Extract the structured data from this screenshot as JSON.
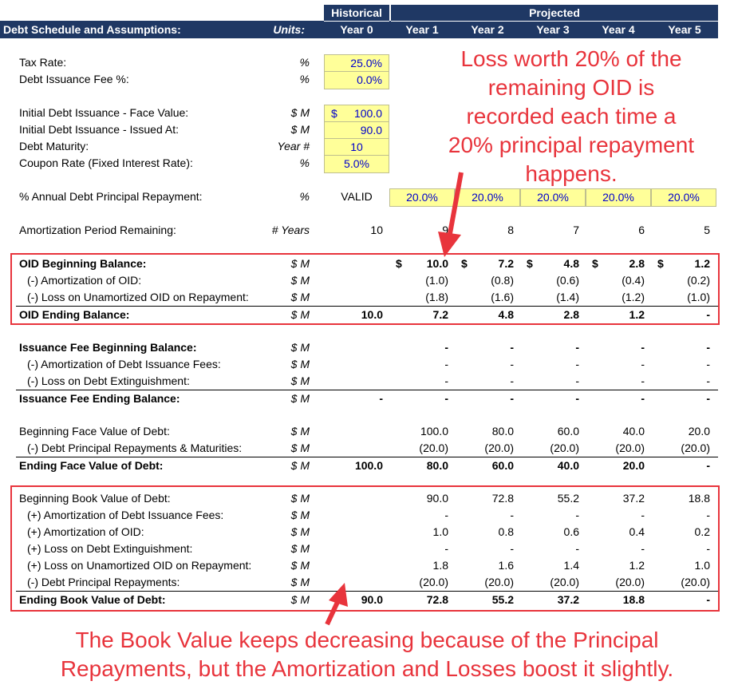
{
  "header": {
    "historical": "Historical",
    "projected": "Projected",
    "title": "Debt Schedule and Assumptions:",
    "units": "Units:",
    "years": [
      "Year 0",
      "Year 1",
      "Year 2",
      "Year 3",
      "Year 4",
      "Year 5"
    ]
  },
  "assumptions": {
    "tax_rate": {
      "label": "Tax Rate:",
      "unit": "%",
      "value": "25.0%"
    },
    "fee_pct": {
      "label": "Debt Issuance Fee %:",
      "unit": "%",
      "value": "0.0%"
    },
    "face_value": {
      "label": "Initial Debt Issuance - Face Value:",
      "unit": "$ M",
      "currency": "$",
      "value": "100.0"
    },
    "issued_at": {
      "label": "Initial Debt Issuance - Issued At:",
      "unit": "$ M",
      "value": "90.0"
    },
    "maturity": {
      "label": "Debt Maturity:",
      "unit": "Year #",
      "value": "10"
    },
    "coupon": {
      "label": "Coupon Rate (Fixed Interest Rate):",
      "unit": "%",
      "value": "5.0%"
    },
    "repayment": {
      "label": "% Annual Debt Principal Repayment:",
      "unit": "%",
      "status": "VALID",
      "values": [
        "20.0%",
        "20.0%",
        "20.0%",
        "20.0%",
        "20.0%"
      ]
    },
    "amort_period": {
      "label": "Amortization Period Remaining:",
      "unit": "# Years",
      "values": [
        "10",
        "9",
        "8",
        "7",
        "6",
        "5"
      ]
    }
  },
  "oid": {
    "begin": {
      "label": "OID Beginning Balance:",
      "unit": "$ M",
      "currency": "$",
      "values": [
        "10.0",
        "7.2",
        "4.8",
        "2.8",
        "1.2"
      ]
    },
    "amort": {
      "label": "(-) Amortization of OID:",
      "unit": "$ M",
      "values": [
        "(1.0)",
        "(0.8)",
        "(0.6)",
        "(0.4)",
        "(0.2)"
      ]
    },
    "loss": {
      "label": "(-) Loss on Unamortized OID on Repayment:",
      "unit": "$ M",
      "values": [
        "(1.8)",
        "(1.6)",
        "(1.4)",
        "(1.2)",
        "(1.0)"
      ]
    },
    "end": {
      "label": "OID Ending Balance:",
      "unit": "$ M",
      "values": [
        "10.0",
        "7.2",
        "4.8",
        "2.8",
        "1.2",
        "-"
      ]
    }
  },
  "fee": {
    "begin": {
      "label": "Issuance Fee Beginning Balance:",
      "unit": "$ M",
      "values": [
        "-",
        "-",
        "-",
        "-",
        "-"
      ]
    },
    "amort": {
      "label": "(-) Amortization of Debt Issuance Fees:",
      "unit": "$ M",
      "values": [
        "-",
        "-",
        "-",
        "-",
        "-"
      ]
    },
    "loss": {
      "label": "(-) Loss on Debt Extinguishment:",
      "unit": "$ M",
      "values": [
        "-",
        "-",
        "-",
        "-",
        "-"
      ]
    },
    "end": {
      "label": "Issuance Fee Ending Balance:",
      "unit": "$ M",
      "values": [
        "-",
        "-",
        "-",
        "-",
        "-",
        "-"
      ]
    }
  },
  "face": {
    "begin": {
      "label": "Beginning Face Value of Debt:",
      "unit": "$ M",
      "values": [
        "100.0",
        "80.0",
        "60.0",
        "40.0",
        "20.0"
      ]
    },
    "repay": {
      "label": "(-) Debt Principal Repayments & Maturities:",
      "unit": "$ M",
      "values": [
        "(20.0)",
        "(20.0)",
        "(20.0)",
        "(20.0)",
        "(20.0)"
      ]
    },
    "end": {
      "label": "Ending Face Value of Debt:",
      "unit": "$ M",
      "values": [
        "100.0",
        "80.0",
        "60.0",
        "40.0",
        "20.0",
        "-"
      ]
    }
  },
  "book": {
    "begin": {
      "label": "Beginning Book Value of Debt:",
      "unit": "$ M",
      "values": [
        "90.0",
        "72.8",
        "55.2",
        "37.2",
        "18.8"
      ]
    },
    "fee_amort": {
      "label": "(+) Amortization of Debt Issuance Fees:",
      "unit": "$ M",
      "values": [
        "-",
        "-",
        "-",
        "-",
        "-"
      ]
    },
    "oid_amort": {
      "label": "(+) Amortization of OID:",
      "unit": "$ M",
      "values": [
        "1.0",
        "0.8",
        "0.6",
        "0.4",
        "0.2"
      ]
    },
    "ext_loss": {
      "label": "(+) Loss on Debt Extinguishment:",
      "unit": "$ M",
      "values": [
        "-",
        "-",
        "-",
        "-",
        "-"
      ]
    },
    "oid_loss": {
      "label": "(+) Loss on Unamortized OID on Repayment:",
      "unit": "$ M",
      "values": [
        "1.8",
        "1.6",
        "1.4",
        "1.2",
        "1.0"
      ]
    },
    "repay": {
      "label": "(-) Debt Principal Repayments:",
      "unit": "$ M",
      "values": [
        "(20.0)",
        "(20.0)",
        "(20.0)",
        "(20.0)",
        "(20.0)"
      ]
    },
    "end": {
      "label": "Ending Book Value of Debt:",
      "unit": "$ M",
      "values": [
        "90.0",
        "72.8",
        "55.2",
        "37.2",
        "18.8",
        "-"
      ]
    }
  },
  "annotations": {
    "top": [
      "Loss worth 20% of the",
      "remaining OID is",
      "recorded each time a",
      "20% principal repayment",
      "happens."
    ],
    "bottom": [
      "The Book Value keeps decreasing because of the Principal",
      "Repayments, but the Amortization and Losses boost it slightly."
    ],
    "color": "#e8343c"
  },
  "colors": {
    "header_bg": "#1f3864",
    "input_bg": "#ffff99",
    "input_text": "#0000cc"
  }
}
